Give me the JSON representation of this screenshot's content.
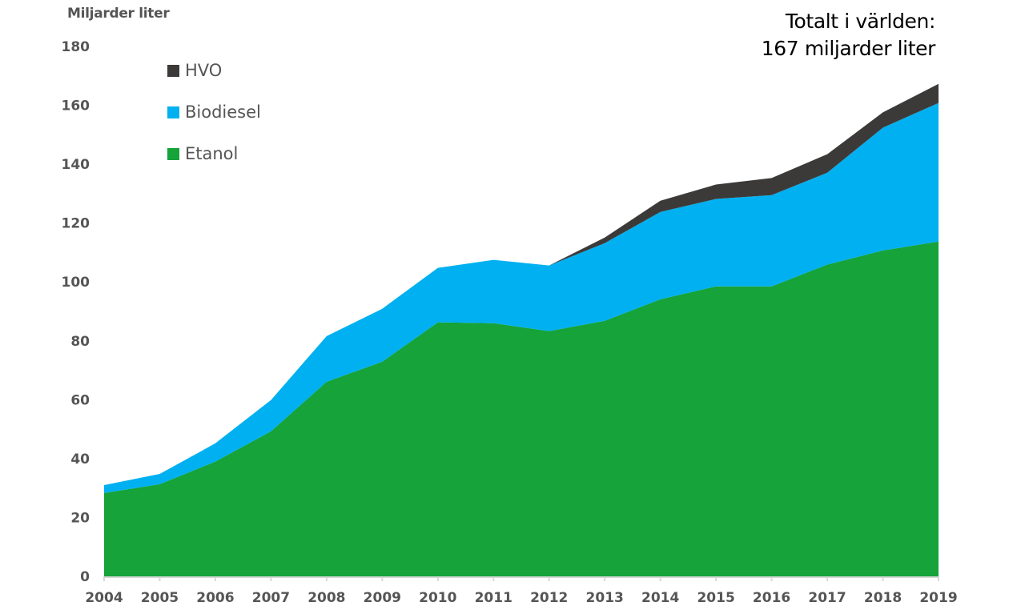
{
  "chart_data": {
    "type": "area",
    "stacked": true,
    "title": "Totalt i världen: 167 miljarder liter",
    "annotation_lines": [
      "Totalt i världen:",
      "167 miljarder liter"
    ],
    "xlabel": "",
    "ylabel": "Miljarder liter",
    "ylim": [
      0,
      180
    ],
    "yticks": [
      0,
      20,
      40,
      60,
      80,
      100,
      120,
      140,
      160,
      180
    ],
    "x": [
      "2004",
      "2005",
      "2006",
      "2007",
      "2008",
      "2009",
      "2010",
      "2011",
      "2012",
      "2013",
      "2014",
      "2015",
      "2016",
      "2017",
      "2018",
      "2019"
    ],
    "grid": false,
    "legend_position": "top-left",
    "series": [
      {
        "name": "Etanol",
        "color": "#15a33a",
        "values": [
          28.3,
          31.3,
          39.0,
          49.3,
          66.1,
          72.9,
          86.3,
          86.0,
          83.3,
          86.8,
          94.1,
          98.5,
          98.5,
          105.9,
          110.7,
          113.7
        ]
      },
      {
        "name": "Biodiesel",
        "color": "#00b0f0",
        "values": [
          2.7,
          3.5,
          6.2,
          10.6,
          15.5,
          18.0,
          18.5,
          21.5,
          22.3,
          26.4,
          29.7,
          29.7,
          31.0,
          31.2,
          41.7,
          47.1
        ]
      },
      {
        "name": "HVO",
        "color": "#3c3a39",
        "values": [
          0,
          0,
          0,
          0,
          0,
          0,
          0,
          0,
          0,
          1.9,
          3.8,
          4.9,
          5.8,
          6.3,
          5.2,
          6.5
        ]
      }
    ],
    "legend": [
      {
        "name": "HVO",
        "color": "#3c3a39"
      },
      {
        "name": "Biodiesel",
        "color": "#00b0f0"
      },
      {
        "name": "Etanol",
        "color": "#15a33a"
      }
    ],
    "axis_color": "#d9d9d9",
    "tick_label_color": "#555555"
  }
}
